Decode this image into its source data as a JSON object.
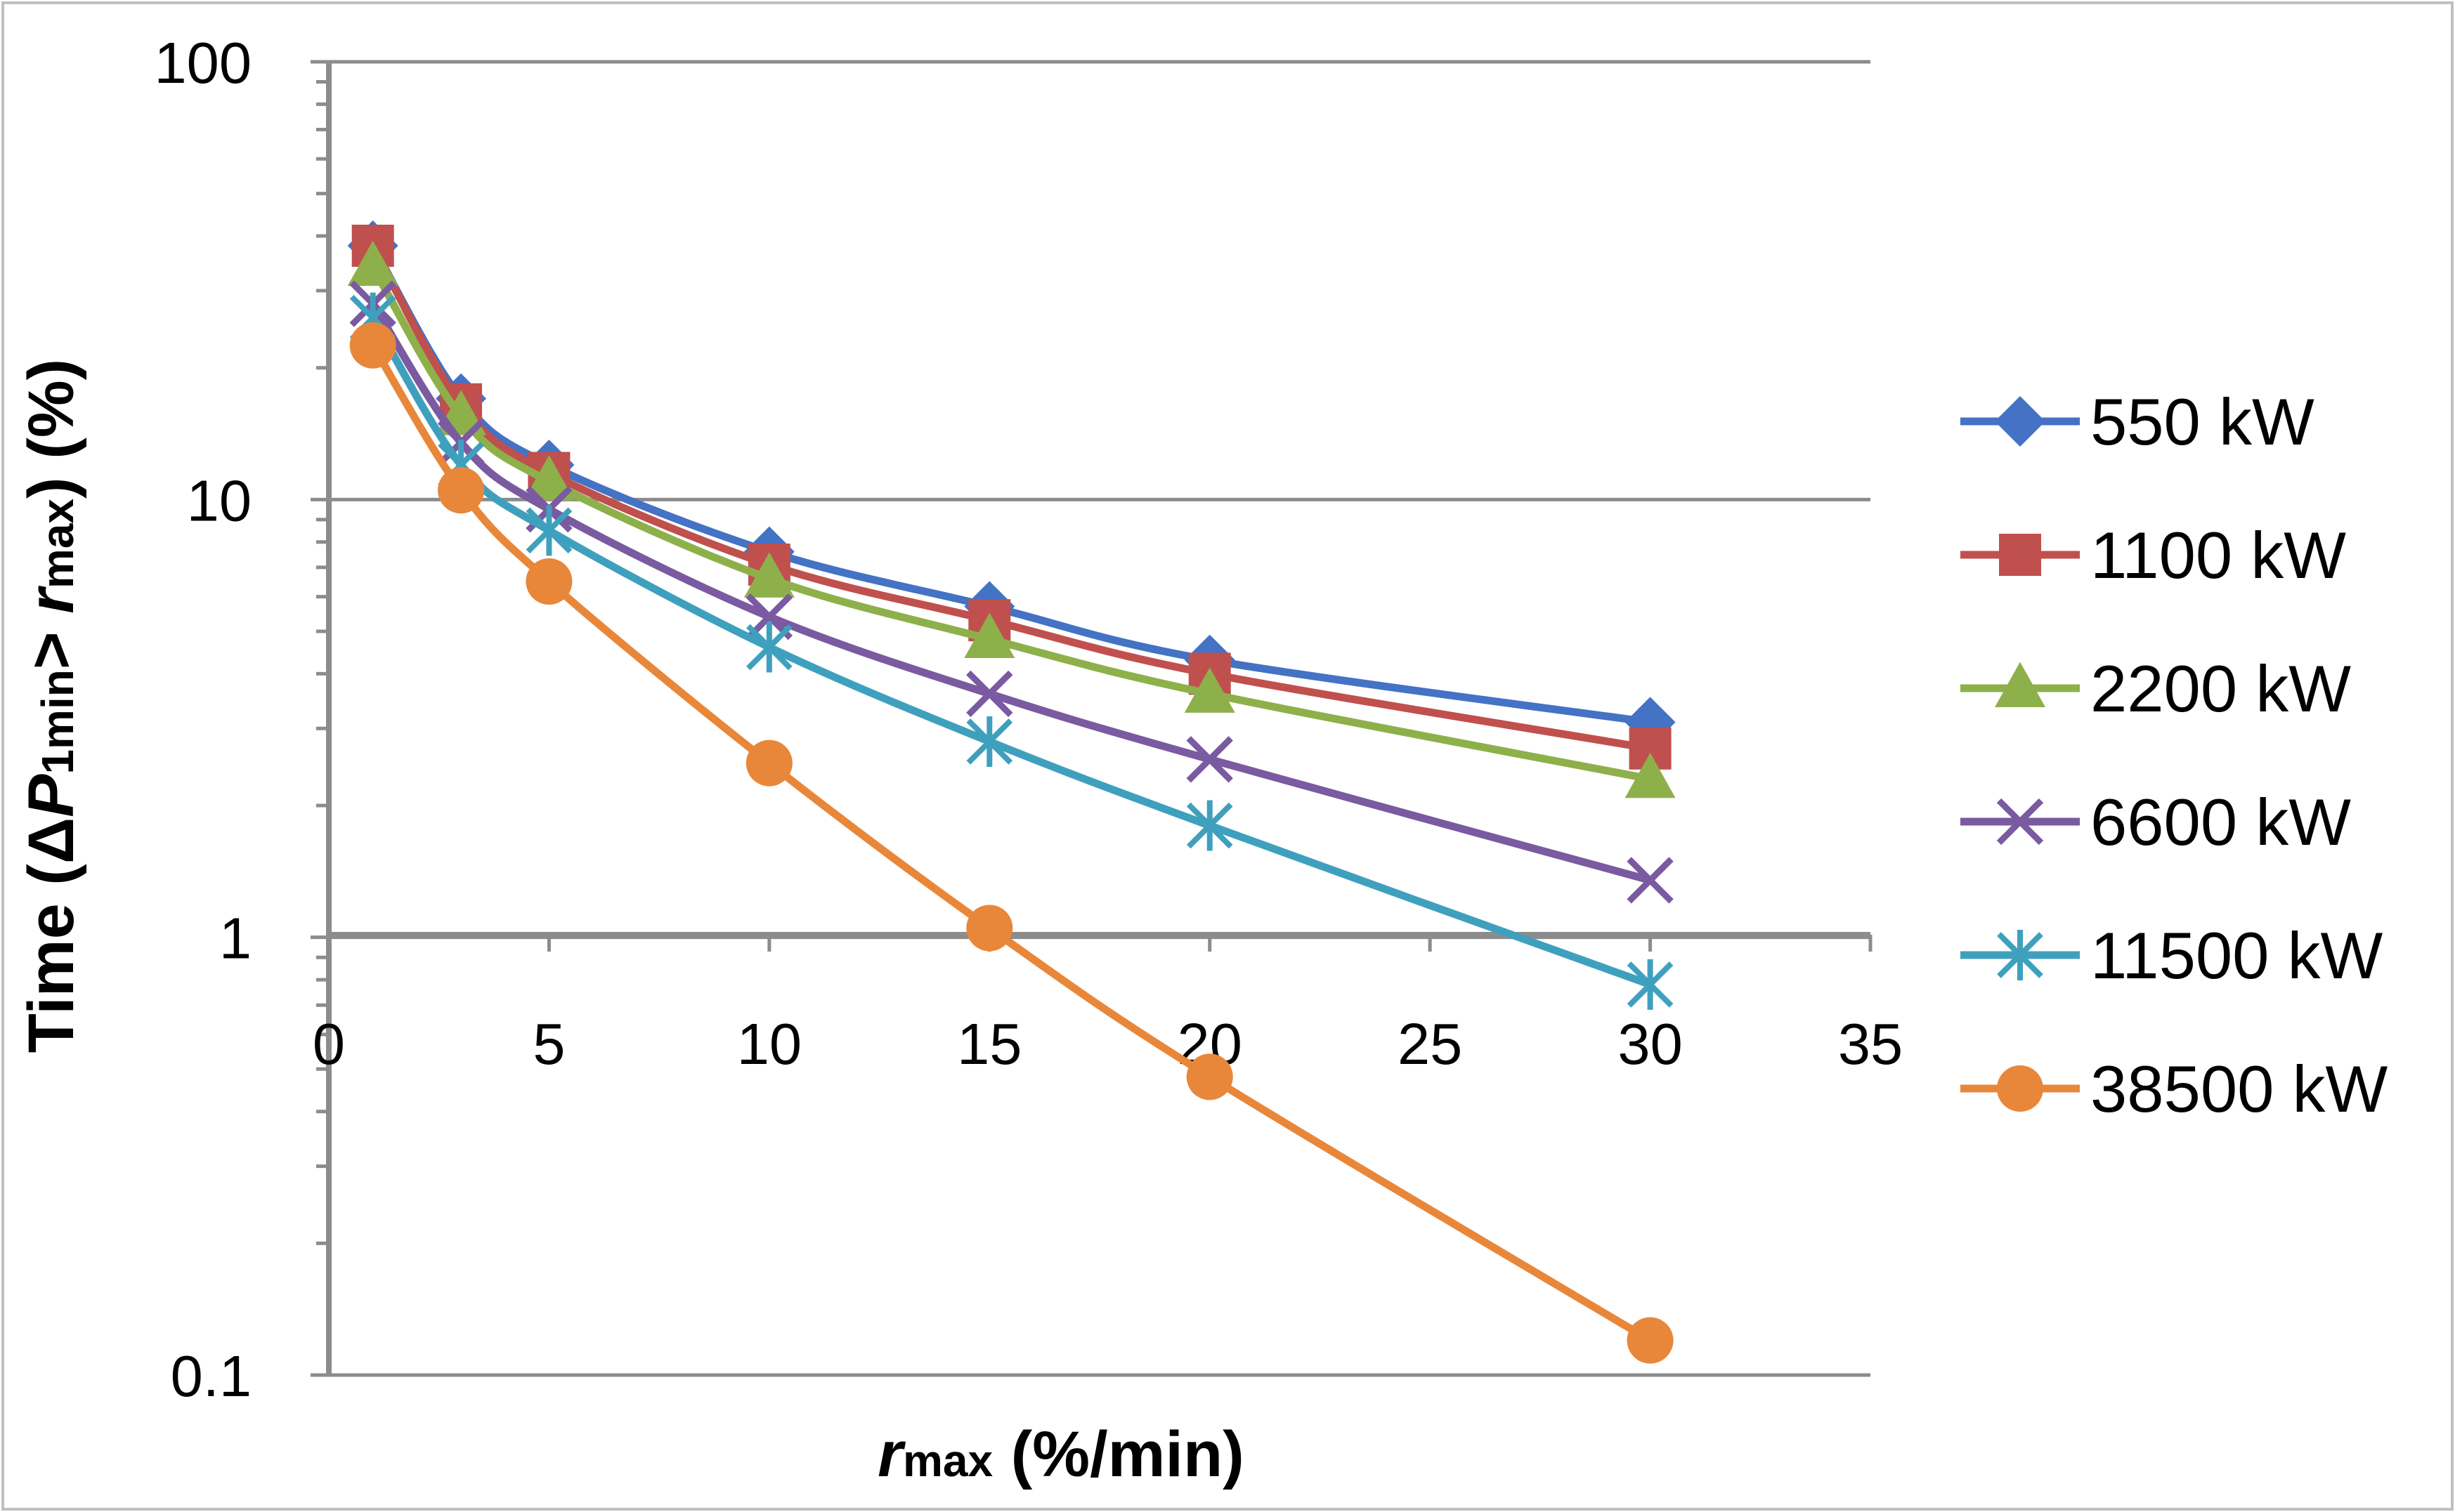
{
  "chart_data": {
    "type": "line",
    "xlabel": {
      "main": "r",
      "sub": "max",
      "rest": " (%/min)"
    },
    "ylabel": {
      "pre": "Time (Δ",
      "p": "P",
      "sub1": "1min",
      "mid": "> ",
      "r": "r",
      "sub2": "max",
      "post": ") (%)"
    },
    "xlim": [
      0,
      35
    ],
    "ylim": [
      0.1,
      100
    ],
    "yscale": "log",
    "x_ticks": [
      "0",
      "5",
      "10",
      "15",
      "20",
      "25",
      "30",
      "35"
    ],
    "y_ticks": [
      "0.1",
      "1",
      "10",
      "100"
    ],
    "grid": "horizontal major",
    "legend_position": "right",
    "series": [
      {
        "name": "550 kW",
        "color": "#4472C4",
        "marker": "diamond",
        "x": [
          1,
          3,
          5,
          10,
          15,
          20,
          30
        ],
        "y": [
          38,
          17,
          12,
          7.6,
          5.7,
          4.3,
          3.1
        ]
      },
      {
        "name": "1100 kW",
        "color": "#C0504D",
        "marker": "square",
        "x": [
          1,
          3,
          5,
          10,
          15,
          20,
          30
        ],
        "y": [
          38,
          16.5,
          11.5,
          7.1,
          5.3,
          4.0,
          2.7
        ]
      },
      {
        "name": "2200 kW",
        "color": "#8EB04A",
        "marker": "triangle",
        "x": [
          1,
          3,
          5,
          10,
          15,
          20,
          30
        ],
        "y": [
          34,
          15.5,
          11.0,
          6.6,
          4.8,
          3.6,
          2.3
        ]
      },
      {
        "name": "6600 kW",
        "color": "#7A5AA0",
        "marker": "x",
        "x": [
          1,
          3,
          5,
          10,
          15,
          20,
          30
        ],
        "y": [
          28,
          13.5,
          9.5,
          5.4,
          3.6,
          2.55,
          1.35
        ]
      },
      {
        "name": "11500 kW",
        "color": "#3FA0BE",
        "marker": "star",
        "x": [
          1,
          3,
          5,
          10,
          15,
          20,
          30
        ],
        "y": [
          26,
          12.0,
          8.5,
          4.6,
          2.8,
          1.8,
          0.78
        ]
      },
      {
        "name": "38500 kW",
        "color": "#E8873A",
        "marker": "circle",
        "x": [
          1,
          3,
          5,
          10,
          15,
          20,
          30
        ],
        "y": [
          22.5,
          10.5,
          6.5,
          2.5,
          1.05,
          0.48,
          0.12
        ]
      }
    ]
  }
}
